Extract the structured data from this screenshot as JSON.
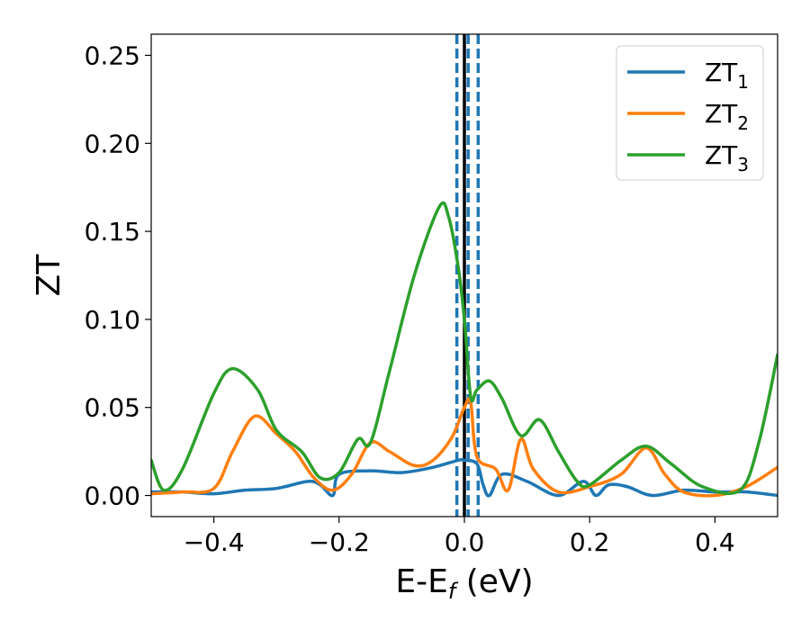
{
  "chart_data": {
    "type": "line",
    "title": "",
    "xlabel": {
      "main": "E-E",
      "sub": "f",
      "unit": " (eV)"
    },
    "ylabel": "ZT",
    "xlim": [
      -0.5,
      0.5
    ],
    "ylim": [
      -0.012,
      0.262
    ],
    "xticks": [
      -0.4,
      -0.2,
      0.0,
      0.2,
      0.4
    ],
    "xtick_labels": [
      "−0.4",
      "−0.2",
      "0.0",
      "0.2",
      "0.4"
    ],
    "yticks": [
      0.0,
      0.05,
      0.1,
      0.15,
      0.2,
      0.25
    ],
    "ytick_labels": [
      "0.00",
      "0.05",
      "0.10",
      "0.15",
      "0.20",
      "0.25"
    ],
    "grid": false,
    "legend": "top-right",
    "vlines": [
      {
        "x": 0.0,
        "style": "solid",
        "color": "#000000"
      },
      {
        "x": -0.012,
        "style": "dashed",
        "color": "#1f77b4"
      },
      {
        "x": 0.006,
        "style": "dashed",
        "color": "#1f77b4"
      },
      {
        "x": 0.022,
        "style": "dashed",
        "color": "#1f77b4"
      }
    ],
    "series": [
      {
        "name": "ZT",
        "sub": "1",
        "color": "#1f77b4",
        "x": [
          -0.5,
          -0.45,
          -0.4,
          -0.35,
          -0.3,
          -0.25,
          -0.23,
          -0.21,
          -0.2,
          -0.15,
          -0.1,
          -0.05,
          -0.01,
          0.0,
          0.02,
          0.03,
          0.04,
          0.06,
          0.1,
          0.15,
          0.19,
          0.21,
          0.23,
          0.26,
          0.3,
          0.35,
          0.4,
          0.45,
          0.5
        ],
        "y": [
          0.002,
          0.002,
          0.001,
          0.003,
          0.004,
          0.008,
          0.006,
          0.0,
          0.012,
          0.014,
          0.013,
          0.016,
          0.02,
          0.02,
          0.018,
          0.006,
          0.0,
          0.012,
          0.008,
          0.0,
          0.008,
          0.0,
          0.006,
          0.005,
          0.0,
          0.003,
          0.002,
          0.002,
          0.0
        ]
      },
      {
        "name": "ZT",
        "sub": "2",
        "color": "#ff7f0e",
        "x": [
          -0.5,
          -0.45,
          -0.4,
          -0.37,
          -0.335,
          -0.3,
          -0.27,
          -0.24,
          -0.21,
          -0.18,
          -0.15,
          -0.12,
          -0.08,
          -0.05,
          -0.02,
          0.0,
          0.01,
          0.02,
          0.05,
          0.07,
          0.09,
          0.11,
          0.15,
          0.2,
          0.25,
          0.29,
          0.32,
          0.35,
          0.4,
          0.45,
          0.5
        ],
        "y": [
          0.001,
          0.002,
          0.004,
          0.025,
          0.045,
          0.035,
          0.025,
          0.01,
          0.003,
          0.012,
          0.03,
          0.025,
          0.017,
          0.02,
          0.033,
          0.05,
          0.053,
          0.022,
          0.015,
          0.003,
          0.032,
          0.015,
          0.002,
          0.005,
          0.012,
          0.027,
          0.012,
          0.002,
          0.0,
          0.005,
          0.016
        ]
      },
      {
        "name": "ZT",
        "sub": "3",
        "color": "#2ca02c",
        "x": [
          -0.5,
          -0.48,
          -0.45,
          -0.4,
          -0.37,
          -0.33,
          -0.3,
          -0.26,
          -0.23,
          -0.2,
          -0.17,
          -0.15,
          -0.12,
          -0.08,
          -0.04,
          -0.025,
          -0.01,
          0.0,
          0.01,
          0.02,
          0.04,
          0.06,
          0.09,
          0.12,
          0.15,
          0.18,
          0.2,
          0.25,
          0.29,
          0.33,
          0.38,
          0.44,
          0.47,
          0.5
        ],
        "y": [
          0.02,
          0.003,
          0.015,
          0.058,
          0.072,
          0.06,
          0.037,
          0.025,
          0.01,
          0.013,
          0.032,
          0.03,
          0.07,
          0.125,
          0.164,
          0.158,
          0.13,
          0.1,
          0.056,
          0.06,
          0.065,
          0.055,
          0.034,
          0.043,
          0.025,
          0.008,
          0.006,
          0.02,
          0.028,
          0.018,
          0.005,
          0.003,
          0.03,
          0.08
        ]
      }
    ]
  }
}
